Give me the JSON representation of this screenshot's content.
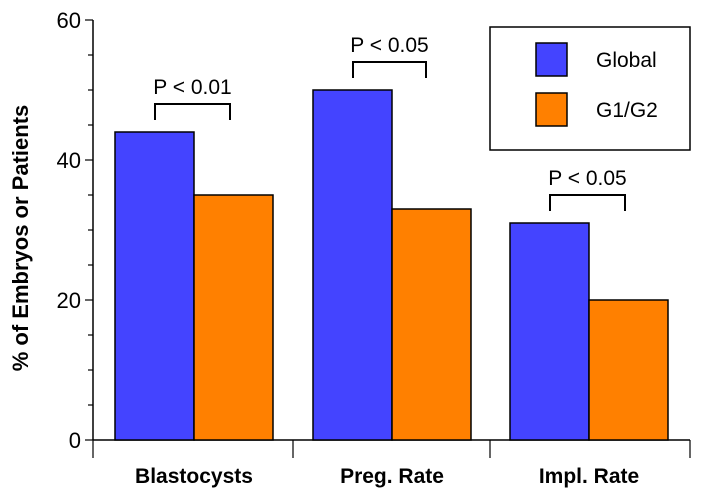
{
  "chart_data": {
    "type": "bar",
    "categories": [
      "Blastocysts",
      "Preg. Rate",
      "Impl. Rate"
    ],
    "series": [
      {
        "name": "Global",
        "color": "#4444ff",
        "values": [
          44,
          50,
          31
        ]
      },
      {
        "name": "G1/G2",
        "color": "#ff8000",
        "values": [
          35,
          33,
          20
        ]
      }
    ],
    "ylabel": "% of Embryos or Patients",
    "ylim": [
      0,
      60
    ],
    "yticks": [
      0,
      20,
      40,
      60
    ],
    "grid": false,
    "legend_position": "top-right",
    "annotations": [
      {
        "category": "Blastocysts",
        "text": "P < 0.01"
      },
      {
        "category": "Preg. Rate",
        "text": "P < 0.05"
      },
      {
        "category": "Impl. Rate",
        "text": "P < 0.05"
      }
    ]
  }
}
